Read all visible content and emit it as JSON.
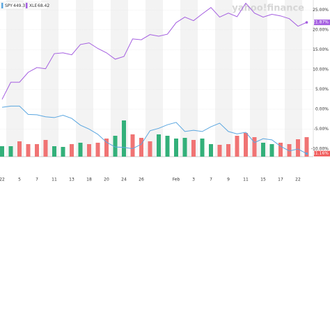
{
  "chart_data": {
    "type": "line",
    "watermark": "yahoo!finance",
    "categories": [
      "22",
      null,
      "5",
      null,
      "7",
      null,
      "11",
      null,
      "13",
      null,
      "18",
      null,
      "20",
      null,
      "24",
      null,
      "26",
      null,
      null,
      null,
      "Feb",
      null,
      "3",
      null,
      "7",
      null,
      "9",
      null,
      "11",
      null,
      "15",
      null,
      "17",
      null,
      "22",
      null
    ],
    "ylim": [
      -11.75,
      27.5
    ],
    "yticks": [
      {
        "value": 25,
        "label": "25.00%"
      },
      {
        "value": 20,
        "label": "20.00%"
      },
      {
        "value": 15,
        "label": "15.00%"
      },
      {
        "value": 10,
        "label": "10.00%"
      },
      {
        "value": 5,
        "label": "5.00%"
      },
      {
        "value": 0,
        "label": "0.00%"
      },
      {
        "value": -5,
        "label": "-5.00%"
      },
      {
        "value": -10,
        "label": "-10.00%"
      }
    ],
    "series": [
      {
        "name": "SPY",
        "legend_value": "449.32",
        "color": "#5aa6e0",
        "values": [
          0.5,
          0.8,
          0.8,
          -1.3,
          -1.4,
          -1.9,
          -2.1,
          -1.5,
          -2.3,
          -4.0,
          -5.0,
          -6.3,
          -8.3,
          -9.5,
          -9.6,
          -9.9,
          -8.8,
          -5.4,
          -4.8,
          -3.9,
          -3.3,
          -5.6,
          -5.3,
          -5.6,
          -4.4,
          -3.5,
          -5.6,
          -6.2,
          -5.8,
          -8.4,
          -7.4,
          -7.7,
          -9.3,
          -10.5,
          -10.0,
          -11.16
        ],
        "last_label": "-11.16%",
        "last_label_color": "#f05a5a"
      },
      {
        "name": "XLE",
        "legend_value": "68.42",
        "color": "#a45ee0",
        "values": [
          2.5,
          6.8,
          6.8,
          9.3,
          10.5,
          10.2,
          14.0,
          14.2,
          13.7,
          16.3,
          16.7,
          15.3,
          14.2,
          12.6,
          13.3,
          17.7,
          17.5,
          18.8,
          18.4,
          18.9,
          21.8,
          23.2,
          22.3,
          24.0,
          25.6,
          23.2,
          24.2,
          23.3,
          26.7,
          24.2,
          23.2,
          23.9,
          23.5,
          22.8,
          20.9,
          21.87
        ],
        "last_label": "21.87%",
        "last_label_color": "#a45ee0"
      }
    ],
    "volume": {
      "ylim": [
        0,
        224
      ],
      "values": [
        15,
        15,
        22,
        18,
        18,
        24,
        15,
        14,
        18,
        20,
        18,
        20,
        26,
        30,
        52,
        32,
        27,
        22,
        32,
        30,
        26,
        27,
        24,
        26,
        18,
        17,
        18,
        30,
        34,
        28,
        20,
        18,
        20,
        18,
        25,
        28
      ],
      "colors": [
        "#33b07a",
        "#33b07a",
        "#f07474",
        "#f07474",
        "#f07474",
        "#f07474",
        "#33b07a",
        "#33b07a",
        "#f07474",
        "#33b07a",
        "#f07474",
        "#f07474",
        "#f07474",
        "#33b07a",
        "#33b07a",
        "#f07474",
        "#f07474",
        "#f07474",
        "#33b07a",
        "#33b07a",
        "#33b07a",
        "#33b07a",
        "#f07474",
        "#33b07a",
        "#33b07a",
        "#f07474",
        "#f07474",
        "#f07474",
        "#f07474",
        "#f07474",
        "#33b07a",
        "#33b07a",
        "#f07474",
        "#f07474",
        "#f07474",
        "#f07474"
      ]
    }
  }
}
